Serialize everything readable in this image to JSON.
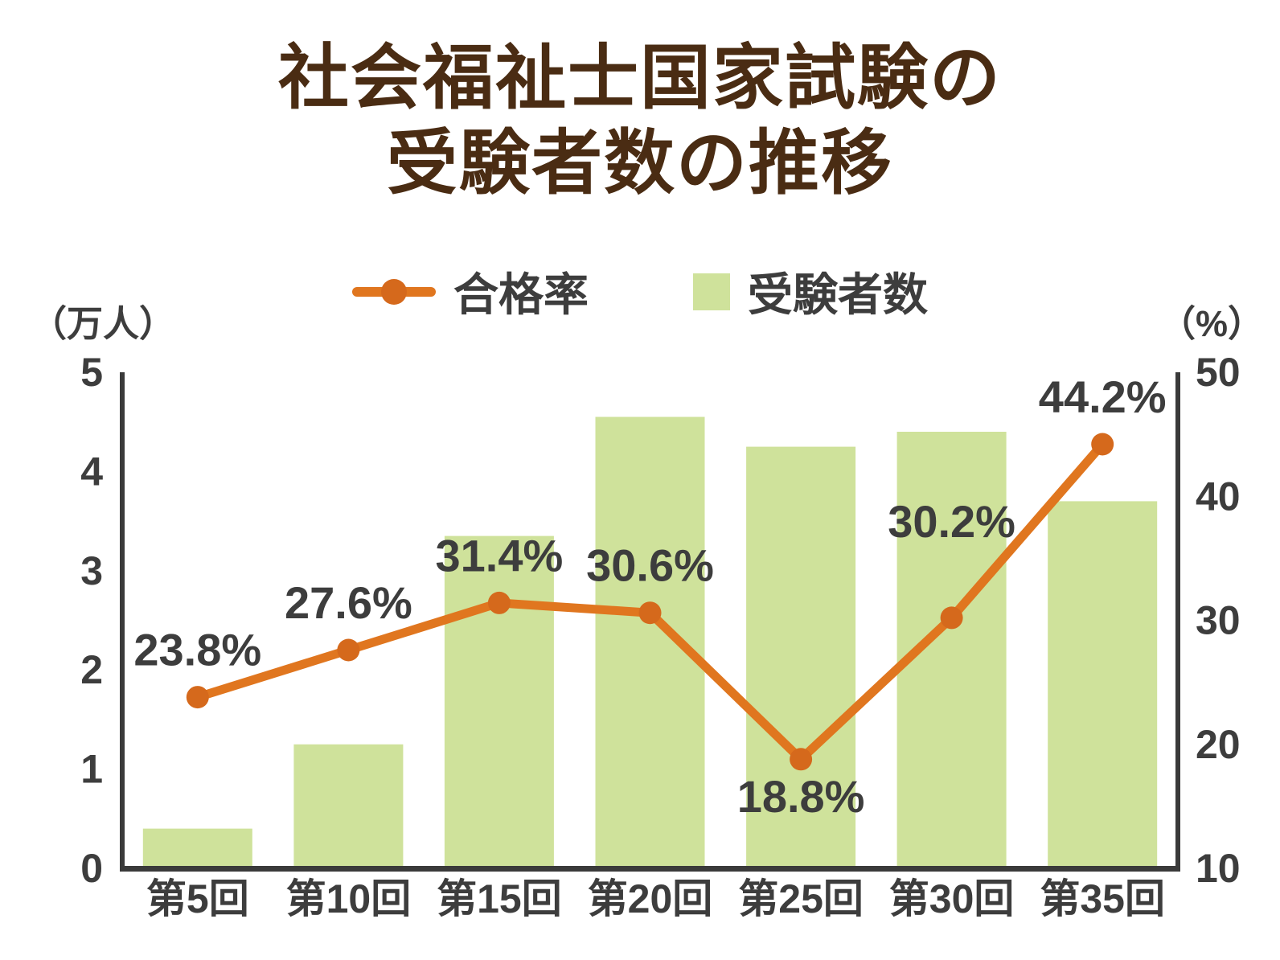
{
  "title": {
    "line1": "社会福祉士国家試験の",
    "line2": "受験者数の推移",
    "color": "#4a2c13"
  },
  "legend": {
    "items": [
      {
        "label": "合格率",
        "type": "line",
        "color": "#e0761f",
        "marker_color": "#d5691c"
      },
      {
        "label": "受験者数",
        "type": "square",
        "color": "#cfe29b"
      }
    ]
  },
  "chart_data": {
    "type": "combo-bar-line",
    "title": "社会福祉士国家試験の受験者数の推移",
    "categories": [
      "第5回",
      "第10回",
      "第15回",
      "第20回",
      "第25回",
      "第30回",
      "第35回"
    ],
    "series": [
      {
        "name": "受験者数",
        "type": "bar",
        "axis": "left",
        "unit": "万人",
        "color": "#cfe29b",
        "values": [
          0.4,
          1.25,
          3.35,
          4.55,
          4.25,
          4.4,
          3.7
        ]
      },
      {
        "name": "合格率",
        "type": "line",
        "axis": "right",
        "unit": "%",
        "color": "#e0761f",
        "marker_color": "#d5691c",
        "values": [
          23.8,
          27.6,
          31.4,
          30.6,
          18.8,
          30.2,
          44.2
        ],
        "point_labels": [
          "23.8%",
          "27.6%",
          "31.4%",
          "30.6%",
          "18.8%",
          "30.2%",
          "44.2%"
        ],
        "label_placement": [
          "above",
          "above",
          "above",
          "above",
          "below",
          "high-above",
          "above"
        ]
      }
    ],
    "left_axis": {
      "unit_label": "（万人）",
      "min": 0,
      "max": 5,
      "ticks": [
        0,
        1,
        2,
        3,
        4,
        5
      ]
    },
    "right_axis": {
      "unit_label": "（%）",
      "min": 10,
      "max": 50,
      "ticks": [
        10,
        20,
        30,
        40,
        50
      ]
    },
    "grid": false,
    "legend_position": "top-center",
    "axis_color": "#3a3a3a",
    "label_color": "#3d3d3d"
  }
}
